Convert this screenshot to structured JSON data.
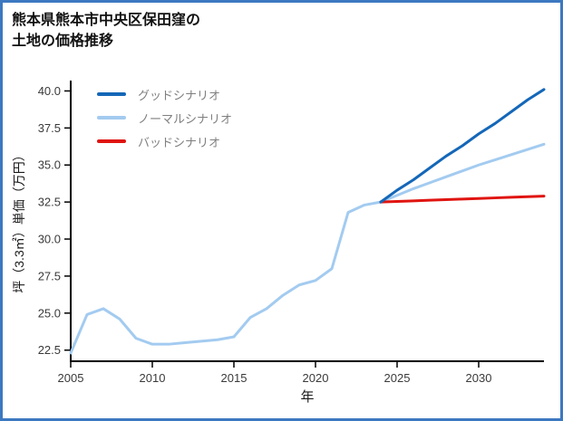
{
  "page": {
    "frame_color": "#3c78c0"
  },
  "header": {
    "title_line1": "熊本県熊本市中央区保田窪の",
    "title_line2": "土地の価格推移"
  },
  "chart_data": {
    "type": "line",
    "title": "熊本県熊本市中央区保田窪の土地の価格推移",
    "xlabel": "年",
    "ylabel": "坪（3.3㎡）単価（万円）",
    "x_range": [
      2005,
      2034
    ],
    "y_axis_range": [
      21.75,
      40.7
    ],
    "xticks": [
      2005,
      2010,
      2015,
      2020,
      2025,
      2030
    ],
    "yticks": [
      "22.5",
      "25.0",
      "27.5",
      "30.0",
      "32.5",
      "35.0",
      "37.5",
      "40.0"
    ],
    "grid": false,
    "legend_position": "upper-left",
    "history": {
      "color": "#a3cbf0",
      "start_year": 2005,
      "values": [
        22.3,
        24.9,
        25.3,
        24.6,
        23.3,
        22.9,
        22.9,
        23.0,
        23.1,
        23.2,
        23.4,
        24.7,
        25.3,
        26.2,
        26.9,
        27.2,
        28.0,
        31.8,
        32.3,
        32.5
      ]
    },
    "scenarios": [
      {
        "label": "グッドシナリオ",
        "color": "#1467b8",
        "start_year": 2024,
        "values": [
          32.5,
          33.3,
          34.0,
          34.8,
          35.6,
          36.3,
          37.1,
          37.8,
          38.6,
          39.4,
          40.1
        ]
      },
      {
        "label": "ノーマルシナリオ",
        "color": "#a3cbf0",
        "start_year": 2024,
        "values": [
          32.5,
          32.95,
          33.4,
          33.8,
          34.2,
          34.6,
          35.0,
          35.35,
          35.7,
          36.05,
          36.4
        ]
      },
      {
        "label": "バッドシナリオ",
        "color": "#e01410",
        "start_year": 2024,
        "values": [
          32.5,
          32.54,
          32.58,
          32.62,
          32.66,
          32.7,
          32.74,
          32.78,
          32.82,
          32.86,
          32.9
        ]
      }
    ]
  }
}
